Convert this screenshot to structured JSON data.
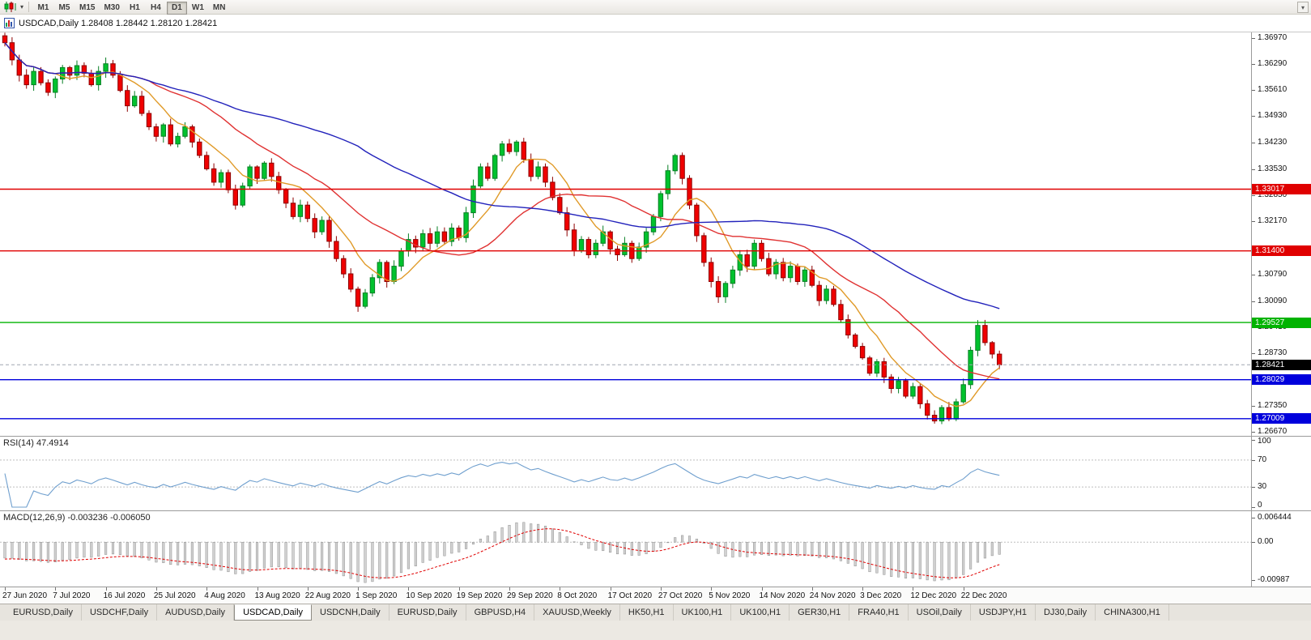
{
  "toolbar": {
    "timeframes": [
      "M1",
      "M5",
      "M15",
      "M30",
      "H1",
      "H4",
      "D1",
      "W1",
      "MN"
    ],
    "active": "D1",
    "dropdown_icon": "▾",
    "overflow_icon": "▾"
  },
  "caption": {
    "text": "USDCAD,Daily 1.28408 1.28442 1.28120 1.28421",
    "symbol": "USDCAD",
    "period": "Daily",
    "open": "1.28408",
    "high": "1.28442",
    "low": "1.28120",
    "close": "1.28421"
  },
  "price_axis": {
    "labels": [
      "1.36970",
      "1.36290",
      "1.35610",
      "1.34930",
      "1.34230",
      "1.33530",
      "1.32850",
      "1.32170",
      "1.30790",
      "1.30090",
      "1.29410",
      "1.28730",
      "1.27350",
      "1.26670"
    ]
  },
  "hlines": [
    {
      "label": "1.33017",
      "price": 1.33017,
      "color": "#e00000"
    },
    {
      "label": "1.31400",
      "price": 1.314,
      "color": "#e00000"
    },
    {
      "label": "1.29527",
      "price": 1.29527,
      "color": "#00b300"
    },
    {
      "label": "1.28029",
      "price": 1.28029,
      "color": "#0000dc"
    },
    {
      "label": "1.27009",
      "price": 1.27009,
      "color": "#0000dc"
    }
  ],
  "current_price": {
    "label": "1.28421",
    "price": 1.28421,
    "badge_color": "#000000"
  },
  "panels": {
    "rsi": {
      "label": "RSI(14) 47.4914",
      "period": 14,
      "value": "47.4914",
      "axis": [
        "100",
        "70",
        "30",
        "0"
      ],
      "level_lines": [
        70,
        30
      ],
      "line_color": "#6f9fce"
    },
    "macd": {
      "label": "MACD(12,26,9) -0.003236 -0.006050",
      "fast": 12,
      "slow": 26,
      "signal": 9,
      "main_value": "-0.003236",
      "signal_value": "-0.006050",
      "axis": [
        "0.006444",
        "0.00",
        "-0.00987"
      ],
      "histogram_color": "#d2d2d2",
      "histogram_border": "#8f8f8f",
      "signal_color": "#e00000"
    }
  },
  "tabs": {
    "active_index": 3,
    "items": [
      "EURUSD,Daily",
      "USDCHF,Daily",
      "AUDUSD,Daily",
      "USDCAD,Daily",
      "USDCNH,Daily",
      "EURUSD,Daily",
      "GBPUSD,H4",
      "XAUUSD,Weekly",
      "HK50,H1",
      "UK100,H1",
      "UK100,H1",
      "GER30,H1",
      "FRA40,H1",
      "USOil,Daily",
      "USDJPY,H1",
      "DJ30,Daily",
      "CHINA300,H1"
    ],
    "active_label": "USDCAD,Daily"
  },
  "chart_data": {
    "type": "candlestick",
    "title": "USDCAD,Daily",
    "price_range": [
      1.2656,
      1.3712
    ],
    "rsi_range": [
      0,
      100
    ],
    "macd_range": [
      -0.011,
      0.0075
    ],
    "up_color": "#00c22e",
    "up_border": "#077f24",
    "down_color": "#f00000",
    "down_border": "#8d0000",
    "bid_line_color": "#a0a6b0",
    "moving_averages": [
      {
        "period": 8,
        "color": "#e09a28"
      },
      {
        "period": 21,
        "color": "#e03232"
      },
      {
        "period": 50,
        "color": "#2222bb"
      }
    ],
    "dates": [
      "27 Jun 2020",
      "7 Jul 2020",
      "16 Jul 2020",
      "25 Jul 2020",
      "4 Aug 2020",
      "13 Aug 2020",
      "22 Aug 2020",
      "1 Sep 2020",
      "10 Sep 2020",
      "19 Sep 2020",
      "29 Sep 2020",
      "8 Oct 2020",
      "17 Oct 2020",
      "27 Oct 2020",
      "5 Nov 2020",
      "14 Nov 2020",
      "24 Nov 2020",
      "3 Dec 2020",
      "12 Dec 2020",
      "22 Dec 2020"
    ],
    "bars_per_tick": 7,
    "closes": [
      1.3685,
      1.364,
      1.36,
      1.3575,
      1.361,
      1.358,
      1.3555,
      1.359,
      1.362,
      1.36,
      1.3625,
      1.3605,
      1.3575,
      1.361,
      1.363,
      1.36,
      1.356,
      1.352,
      1.3545,
      1.35,
      1.3465,
      1.344,
      1.347,
      1.342,
      1.344,
      1.3465,
      1.3425,
      1.339,
      1.3355,
      1.332,
      1.3345,
      1.33,
      1.326,
      1.331,
      1.336,
      1.333,
      1.337,
      1.3335,
      1.33,
      1.3265,
      1.323,
      1.326,
      1.3225,
      1.319,
      1.322,
      1.3165,
      1.312,
      1.308,
      1.304,
      1.2995,
      1.303,
      1.307,
      1.311,
      1.306,
      1.31,
      1.314,
      1.317,
      1.315,
      1.3185,
      1.316,
      1.319,
      1.3165,
      1.32,
      1.3175,
      1.324,
      1.331,
      1.336,
      1.333,
      1.339,
      1.342,
      1.34,
      1.3425,
      1.338,
      1.3335,
      1.336,
      1.332,
      1.328,
      1.324,
      1.3195,
      1.314,
      1.317,
      1.313,
      1.316,
      1.319,
      1.3145,
      1.313,
      1.316,
      1.312,
      1.315,
      1.319,
      1.323,
      1.329,
      1.335,
      1.339,
      1.333,
      1.326,
      1.318,
      1.311,
      1.306,
      1.302,
      1.3055,
      1.309,
      1.313,
      1.31,
      1.316,
      1.312,
      1.308,
      1.311,
      1.307,
      1.31,
      1.306,
      1.309,
      1.305,
      1.301,
      1.304,
      1.3,
      1.296,
      1.292,
      1.289,
      1.286,
      1.282,
      1.285,
      1.281,
      1.278,
      1.28,
      1.276,
      1.2785,
      1.274,
      1.271,
      1.2695,
      1.273,
      1.27,
      1.2745,
      1.279,
      1.288,
      1.2945,
      1.29,
      1.287,
      1.2842
    ]
  }
}
